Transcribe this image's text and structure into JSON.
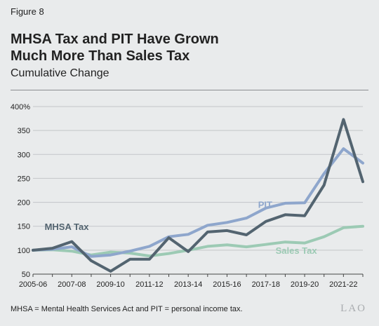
{
  "figure_label": "Figure 8",
  "title_line1": "MHSA Tax and PIT Have Grown",
  "title_line2": "Much More Than Sales Tax",
  "subtitle": "Cumulative Change",
  "note": "MHSA = Mental Health Services Act and PIT = personal income tax.",
  "logo": "LAO",
  "chart_data": {
    "type": "line",
    "x": [
      "2005-06",
      "2006-07",
      "2007-08",
      "2008-09",
      "2009-10",
      "2010-11",
      "2011-12",
      "2012-13",
      "2013-14",
      "2014-15",
      "2015-16",
      "2016-17",
      "2017-18",
      "2018-19",
      "2019-20",
      "2020-21",
      "2021-22",
      "2022-23"
    ],
    "x_tick_labels": [
      "2005-06",
      "2007-08",
      "2009-10",
      "2011-12",
      "2013-14",
      "2015-16",
      "2017-18",
      "2019-20",
      "2021-22"
    ],
    "ylim": [
      50,
      400
    ],
    "y_ticks": [
      50,
      100,
      150,
      200,
      250,
      300,
      350,
      400
    ],
    "y_tick_labels": [
      "50",
      "100",
      "150",
      "200",
      "250",
      "300",
      "350",
      "400%"
    ],
    "grid": "horizontal",
    "series": [
      {
        "name": "Sales Tax",
        "color": "#9ccab4",
        "values": [
          100,
          101,
          98,
          90,
          96,
          94,
          88,
          93,
          100,
          108,
          111,
          107,
          112,
          117,
          115,
          128,
          147,
          150
        ]
      },
      {
        "name": "PIT",
        "color": "#8ea6cc",
        "values": [
          100,
          102,
          107,
          87,
          90,
          98,
          108,
          128,
          133,
          152,
          158,
          167,
          188,
          198,
          199,
          260,
          312,
          282
        ]
      },
      {
        "name": "MHSA Tax",
        "color": "#536470",
        "values": [
          100,
          104,
          118,
          78,
          56,
          81,
          81,
          126,
          97,
          138,
          141,
          132,
          160,
          174,
          172,
          236,
          373,
          243
        ]
      }
    ]
  }
}
